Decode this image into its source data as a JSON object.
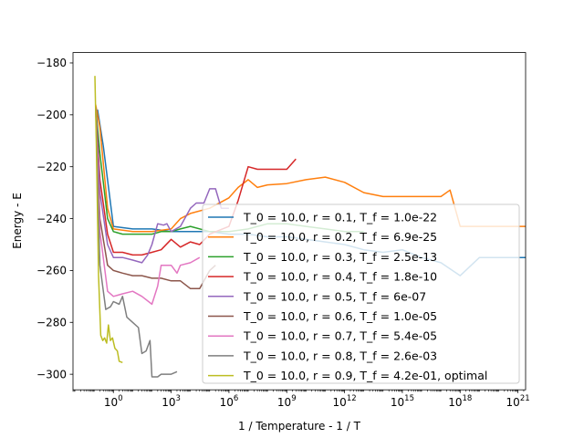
{
  "chart_data": {
    "type": "line",
    "title": "",
    "xlabel": "1 / Temperature - 1 / T",
    "ylabel": "Energy - E",
    "xscale": "log",
    "xlim": [
      0.008,
      2.5e+21
    ],
    "ylim": [
      -306,
      -176
    ],
    "grid": false,
    "legend_position": "lower-right",
    "x_ticks": [
      {
        "value": 1,
        "base": "10",
        "exp": "0"
      },
      {
        "value": 1000,
        "base": "10",
        "exp": "3"
      },
      {
        "value": 1000000,
        "base": "10",
        "exp": "6"
      },
      {
        "value": 1000000000,
        "base": "10",
        "exp": "9"
      },
      {
        "value": 1000000000000.0,
        "base": "10",
        "exp": "12"
      },
      {
        "value": 1000000000000000.0,
        "base": "10",
        "exp": "15"
      },
      {
        "value": 1e+18,
        "base": "10",
        "exp": "18"
      },
      {
        "value": 1e+21,
        "base": "10",
        "exp": "21"
      }
    ],
    "y_ticks": [
      {
        "value": -180,
        "label": "−180"
      },
      {
        "value": -200,
        "label": "−200"
      },
      {
        "value": -220,
        "label": "−220"
      },
      {
        "value": -240,
        "label": "−240"
      },
      {
        "value": -260,
        "label": "−260"
      },
      {
        "value": -280,
        "label": "−280"
      },
      {
        "value": -300,
        "label": "−300"
      }
    ],
    "series": [
      {
        "name": "T_0 = 10.0, r = 0.1, T_f = 1.0e-22",
        "color": "#1f77b4",
        "points": [
          [
            0.15,
            -198
          ],
          [
            0.3,
            -212
          ],
          [
            1,
            -243
          ],
          [
            10,
            -244
          ],
          [
            100,
            -244
          ],
          [
            1000,
            -245
          ],
          [
            10000.0,
            -245
          ],
          [
            100000.0,
            -245
          ],
          [
            1000000.0,
            -246
          ],
          [
            10000000.0,
            -246
          ],
          [
            100000000.0,
            -247
          ],
          [
            1000000000.0,
            -247
          ],
          [
            10000000000.0,
            -248
          ],
          [
            100000000000.0,
            -249
          ],
          [
            1000000000000.0,
            -250
          ],
          [
            10000000000000.0,
            -252
          ],
          [
            100000000000000.0,
            -253
          ],
          [
            1000000000000000.0,
            -252
          ],
          [
            1e+16,
            -255
          ],
          [
            1e+17,
            -257
          ],
          [
            1e+18,
            -262
          ],
          [
            1e+19,
            -255
          ],
          [
            1e+20,
            -255
          ],
          [
            3e+21,
            -255
          ]
        ]
      },
      {
        "name": "T_0 = 10.0, r = 0.2, T_f = 6.9e-25",
        "color": "#ff7f0e",
        "points": [
          [
            0.12,
            -196
          ],
          [
            0.2,
            -205
          ],
          [
            0.5,
            -236
          ],
          [
            1,
            -244
          ],
          [
            10,
            -245
          ],
          [
            100,
            -245
          ],
          [
            1000,
            -244
          ],
          [
            3000,
            -240
          ],
          [
            10000.0,
            -238
          ],
          [
            100000.0,
            -236
          ],
          [
            1000000.0,
            -232
          ],
          [
            3000000.0,
            -228
          ],
          [
            10000000.0,
            -225
          ],
          [
            30000000.0,
            -228
          ],
          [
            100000000.0,
            -227
          ],
          [
            1000000000.0,
            -226.5
          ],
          [
            10000000000.0,
            -225
          ],
          [
            100000000000.0,
            -224
          ],
          [
            1000000000000.0,
            -226
          ],
          [
            10000000000000.0,
            -230
          ],
          [
            100000000000000.0,
            -231.5
          ],
          [
            1000000000000000.0,
            -231.5
          ],
          [
            1e+16,
            -231.5
          ],
          [
            1e+17,
            -231.5
          ],
          [
            3e+17,
            -229
          ],
          [
            1e+18,
            -243
          ],
          [
            1e+19,
            -243
          ],
          [
            1e+20,
            -243
          ],
          [
            3e+21,
            -243
          ]
        ]
      },
      {
        "name": "T_0 = 10.0, r = 0.3, T_f = 2.5e-13",
        "color": "#2ca02c",
        "points": [
          [
            0.12,
            -197
          ],
          [
            0.2,
            -215
          ],
          [
            0.5,
            -240
          ],
          [
            1,
            -245
          ],
          [
            3,
            -246
          ],
          [
            10,
            -246
          ],
          [
            100,
            -246
          ],
          [
            300,
            -245
          ],
          [
            1000,
            -245
          ],
          [
            3000,
            -244
          ],
          [
            10000.0,
            -243
          ],
          [
            100000.0,
            -245
          ],
          [
            1000000.0,
            -245
          ],
          [
            10000000.0,
            -244
          ],
          [
            100000000.0,
            -242
          ],
          [
            1000000000.0,
            -242
          ],
          [
            10000000000.0,
            -243
          ],
          [
            100000000000.0,
            -244
          ],
          [
            1000000000000.0,
            -245
          ],
          [
            10000000000000.0,
            -245
          ]
        ]
      },
      {
        "name": "T_0 = 10.0, r = 0.4, T_f = 1.8e-10",
        "color": "#d62728",
        "points": [
          [
            0.12,
            -197
          ],
          [
            0.2,
            -225
          ],
          [
            0.5,
            -246
          ],
          [
            1,
            -253
          ],
          [
            3,
            -253
          ],
          [
            10,
            -254
          ],
          [
            30,
            -254
          ],
          [
            100,
            -253
          ],
          [
            300,
            -252
          ],
          [
            1000,
            -248
          ],
          [
            3000,
            -251
          ],
          [
            10000.0,
            -249
          ],
          [
            30000.0,
            -250
          ],
          [
            100000.0,
            -246
          ],
          [
            1000000.0,
            -243
          ],
          [
            3000000.0,
            -233
          ],
          [
            10000000.0,
            -220
          ],
          [
            30000000.0,
            -221
          ],
          [
            100000000.0,
            -221
          ],
          [
            1000000000.0,
            -221
          ],
          [
            3000000000.0,
            -217
          ]
        ]
      },
      {
        "name": "T_0 = 10.0, r = 0.5, T_f = 6e-07",
        "color": "#9467bd",
        "points": [
          [
            0.12,
            -197
          ],
          [
            0.2,
            -230
          ],
          [
            0.5,
            -250
          ],
          [
            1,
            -255
          ],
          [
            3,
            -255
          ],
          [
            10,
            -256
          ],
          [
            30,
            -257
          ],
          [
            60,
            -254
          ],
          [
            100,
            -250
          ],
          [
            200,
            -242
          ],
          [
            400,
            -242.5
          ],
          [
            600,
            -242
          ],
          [
            1000,
            -245
          ],
          [
            3000,
            -243
          ],
          [
            10000.0,
            -236
          ],
          [
            20000.0,
            -234
          ],
          [
            50000.0,
            -234
          ],
          [
            100000.0,
            -228.5
          ],
          [
            200000.0,
            -228.5
          ],
          [
            400000.0,
            -236
          ],
          [
            1000000.0,
            -236
          ]
        ]
      },
      {
        "name": "T_0 = 10.0, r = 0.6, T_f = 1.0e-05",
        "color": "#8c564b",
        "points": [
          [
            0.12,
            -197
          ],
          [
            0.2,
            -240
          ],
          [
            0.5,
            -258
          ],
          [
            1,
            -260
          ],
          [
            3,
            -261
          ],
          [
            10,
            -262
          ],
          [
            30,
            -262
          ],
          [
            100,
            -263
          ],
          [
            300,
            -263
          ],
          [
            1000,
            -264
          ],
          [
            3000,
            -264
          ],
          [
            10000.0,
            -267
          ],
          [
            30000.0,
            -267
          ],
          [
            100000.0,
            -260
          ],
          [
            200000.0,
            -258
          ]
        ]
      },
      {
        "name": "T_0 = 10.0, r = 0.7, T_f = 5.4e-05",
        "color": "#e377c2",
        "points": [
          [
            0.12,
            -197
          ],
          [
            0.2,
            -245
          ],
          [
            0.5,
            -268
          ],
          [
            1,
            -270
          ],
          [
            3,
            -269
          ],
          [
            10,
            -268
          ],
          [
            30,
            -270
          ],
          [
            100,
            -273
          ],
          [
            200,
            -266
          ],
          [
            300,
            -258
          ],
          [
            1000,
            -258
          ],
          [
            2000,
            -261
          ],
          [
            3000,
            -258
          ],
          [
            10000.0,
            -257
          ],
          [
            30000.0,
            -255
          ]
        ]
      },
      {
        "name": "T_0 = 10.0, r = 0.8, T_f = 2.6e-03",
        "color": "#7f7f7f",
        "points": [
          [
            0.12,
            -197
          ],
          [
            0.2,
            -258
          ],
          [
            0.4,
            -275
          ],
          [
            0.7,
            -274
          ],
          [
            1,
            -272
          ],
          [
            2,
            -273
          ],
          [
            3,
            -270
          ],
          [
            5,
            -278
          ],
          [
            10,
            -280
          ],
          [
            20,
            -282
          ],
          [
            30,
            -292
          ],
          [
            50,
            -291
          ],
          [
            80,
            -287
          ],
          [
            100,
            -301
          ],
          [
            200,
            -301
          ],
          [
            300,
            -300
          ],
          [
            1000,
            -300
          ],
          [
            2000,
            -299
          ]
        ]
      },
      {
        "name": "T_0 = 10.0, r = 0.9, T_f = 4.2e-01, optimal",
        "color": "#bcbd22",
        "points": [
          [
            0.11,
            -185
          ],
          [
            0.13,
            -212
          ],
          [
            0.17,
            -262
          ],
          [
            0.22,
            -285
          ],
          [
            0.28,
            -287
          ],
          [
            0.35,
            -286
          ],
          [
            0.45,
            -288
          ],
          [
            0.55,
            -281
          ],
          [
            0.7,
            -287
          ],
          [
            0.9,
            -286
          ],
          [
            1.2,
            -290
          ],
          [
            1.6,
            -291
          ],
          [
            2,
            -295
          ],
          [
            3,
            -295.5
          ]
        ]
      }
    ]
  }
}
